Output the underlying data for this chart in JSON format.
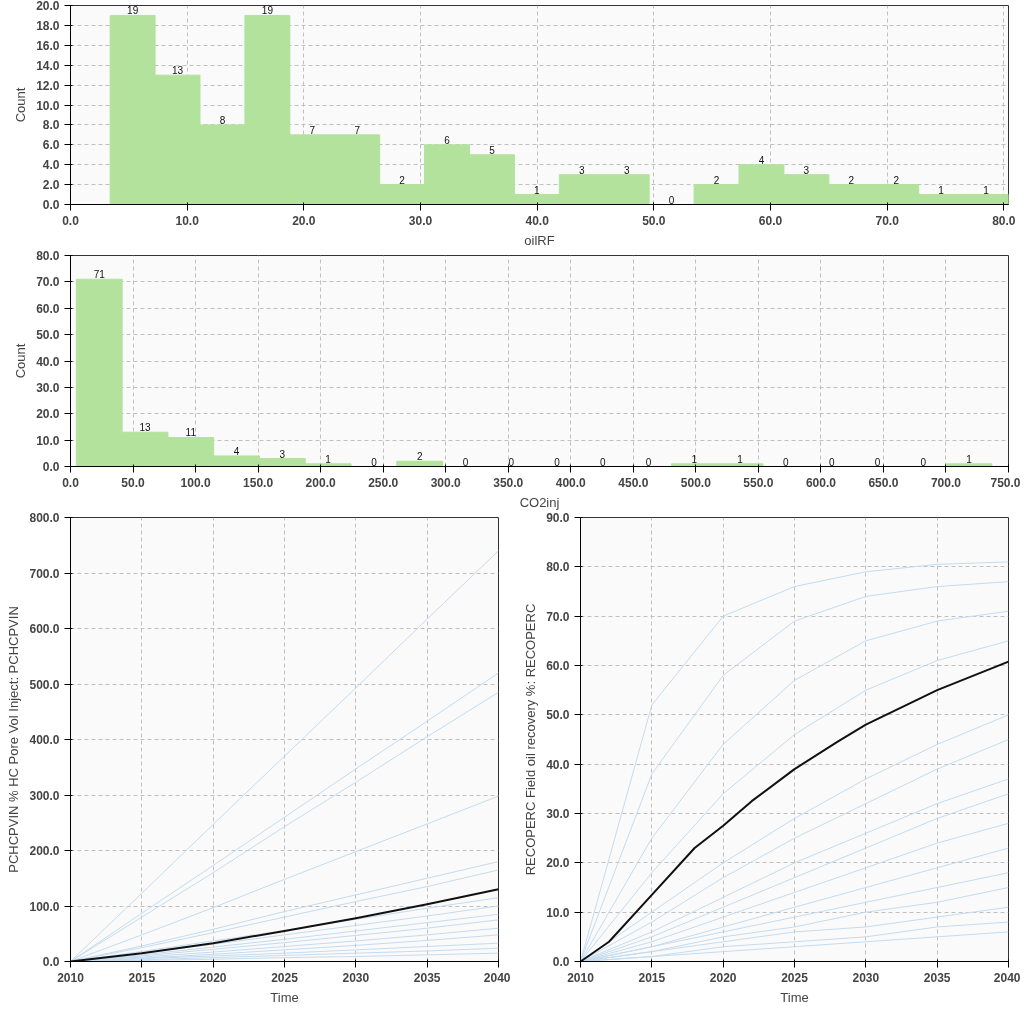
{
  "chart_data": [
    {
      "type": "histogram",
      "xlabel": "oilRF",
      "ylabel": "Count",
      "color": "#b3e29c",
      "data_labels": true,
      "grid": true,
      "bins": [
        3.4,
        7.25,
        11.1,
        14.95,
        18.8,
        22.65,
        26.5,
        30.35,
        34.2,
        38.05,
        41.9,
        45.75,
        49.6,
        53.45,
        57.3,
        61.15,
        65.0,
        68.85,
        72.7,
        76.55,
        80.4
      ],
      "values": [
        19,
        13,
        8,
        19,
        7,
        7,
        2,
        6,
        5,
        1,
        3,
        3,
        0,
        2,
        4,
        3,
        2,
        2,
        1,
        1
      ],
      "xlim": [
        0,
        80.4
      ],
      "ylim": [
        0,
        20
      ],
      "xticks": [
        {
          "value": 0,
          "label": "0.0"
        },
        {
          "value": 10,
          "label": "10.0"
        },
        {
          "value": 20,
          "label": "20.0"
        },
        {
          "value": 30,
          "label": "30.0"
        },
        {
          "value": 40,
          "label": "40.0"
        },
        {
          "value": 50,
          "label": "50.0"
        },
        {
          "value": 60,
          "label": "60.0"
        },
        {
          "value": 70,
          "label": "70.0"
        },
        {
          "value": 80,
          "label": "80.0"
        }
      ],
      "yticks": [
        {
          "value": 0,
          "label": "0.0"
        },
        {
          "value": 2,
          "label": "2.0"
        },
        {
          "value": 4,
          "label": "4.0"
        },
        {
          "value": 6,
          "label": "6.0"
        },
        {
          "value": 8,
          "label": "8.0"
        },
        {
          "value": 10,
          "label": "10.0"
        },
        {
          "value": 12,
          "label": "12.0"
        },
        {
          "value": 14,
          "label": "14.0"
        },
        {
          "value": 16,
          "label": "16.0"
        },
        {
          "value": 18,
          "label": "18.0"
        },
        {
          "value": 20,
          "label": "20.0"
        }
      ]
    },
    {
      "type": "histogram",
      "xlabel": "CO2inj",
      "ylabel": "Count",
      "color": "#b3e29c",
      "data_labels": true,
      "grid": true,
      "bins": [
        4.7,
        41.3,
        77.9,
        114.5,
        151.1,
        187.7,
        224.3,
        260.9,
        297.5,
        334.1,
        370.7,
        407.3,
        443.9,
        480.5,
        517.1,
        553.7,
        590.3,
        626.9,
        663.5,
        700.1,
        736.7
      ],
      "values": [
        71,
        13,
        11,
        4,
        3,
        1,
        0,
        2,
        0,
        0,
        0,
        0,
        0,
        1,
        1,
        0,
        0,
        0,
        0,
        1
      ],
      "xlim": [
        0,
        750
      ],
      "ylim": [
        0,
        80
      ],
      "xticks": [
        {
          "value": 0,
          "label": "0.0"
        },
        {
          "value": 50,
          "label": "50.0"
        },
        {
          "value": 100,
          "label": "100.0"
        },
        {
          "value": 150,
          "label": "150.0"
        },
        {
          "value": 200,
          "label": "200.0"
        },
        {
          "value": 250,
          "label": "250.0"
        },
        {
          "value": 300,
          "label": "300.0"
        },
        {
          "value": 350,
          "label": "350.0"
        },
        {
          "value": 400,
          "label": "400.0"
        },
        {
          "value": 450,
          "label": "450.0"
        },
        {
          "value": 500,
          "label": "500.0"
        },
        {
          "value": 550,
          "label": "550.0"
        },
        {
          "value": 600,
          "label": "600.0"
        },
        {
          "value": 650,
          "label": "650.0"
        },
        {
          "value": 700,
          "label": "700.0"
        },
        {
          "value": 750,
          "label": "750.0"
        }
      ],
      "yticks": [
        {
          "value": 0,
          "label": "0.0"
        },
        {
          "value": 10,
          "label": "10.0"
        },
        {
          "value": 20,
          "label": "20.0"
        },
        {
          "value": 30,
          "label": "30.0"
        },
        {
          "value": 40,
          "label": "40.0"
        },
        {
          "value": 50,
          "label": "50.0"
        },
        {
          "value": 60,
          "label": "60.0"
        },
        {
          "value": 70,
          "label": "70.0"
        },
        {
          "value": 80,
          "label": "80.0"
        }
      ]
    },
    {
      "type": "line",
      "xlabel": "Time",
      "ylabel": "PCHCPVIN % HC Pore Vol Inject: PCHCPVIN",
      "grid": true,
      "marker": "none",
      "x": [
        2010,
        2015,
        2020,
        2025,
        2030,
        2035,
        2040
      ],
      "xlim": [
        2010,
        2040
      ],
      "ylim": [
        0,
        800
      ],
      "xticks": [
        2010,
        2015,
        2020,
        2025,
        2030,
        2035,
        2040
      ],
      "yticks": [
        {
          "value": 0,
          "label": "0.0"
        },
        {
          "value": 100,
          "label": "100.0"
        },
        {
          "value": 200,
          "label": "200.0"
        },
        {
          "value": 300,
          "label": "300.0"
        },
        {
          "value": 400,
          "label": "400.0"
        },
        {
          "value": 500,
          "label": "500.0"
        },
        {
          "value": 600,
          "label": "600.0"
        },
        {
          "value": 700,
          "label": "700.0"
        },
        {
          "value": 800,
          "label": "800.0"
        }
      ],
      "series": [
        {
          "color": "#c4dbef",
          "values": [
            0,
            123,
            247,
            370,
            493,
            617,
            740
          ]
        },
        {
          "color": "#c4dbef",
          "values": [
            0,
            87,
            173,
            260,
            347,
            433,
            520
          ]
        },
        {
          "color": "#c4dbef",
          "values": [
            0,
            80,
            160,
            243,
            323,
            405,
            485
          ]
        },
        {
          "color": "#c4dbef",
          "values": [
            0,
            48,
            97,
            148,
            198,
            248,
            298
          ]
        },
        {
          "color": "#c4dbef",
          "values": [
            0,
            28,
            58,
            90,
            120,
            150,
            180
          ]
        },
        {
          "color": "#c4dbef",
          "values": [
            0,
            25,
            52,
            80,
            108,
            135,
            165
          ]
        },
        {
          "color": "#c4dbef",
          "values": [
            0,
            18,
            37,
            56,
            76,
            96,
            115
          ]
        },
        {
          "color": "#c4dbef",
          "values": [
            0,
            15,
            31,
            48,
            65,
            82,
            100
          ]
        },
        {
          "color": "#c4dbef",
          "values": [
            0,
            12,
            26,
            40,
            55,
            70,
            85
          ]
        },
        {
          "color": "#c4dbef",
          "values": [
            0,
            10,
            22,
            34,
            47,
            60,
            75
          ]
        },
        {
          "color": "#c4dbef",
          "values": [
            0,
            8,
            17,
            27,
            37,
            48,
            60
          ]
        },
        {
          "color": "#c4dbef",
          "values": [
            0,
            6,
            13,
            21,
            29,
            38,
            48
          ]
        },
        {
          "color": "#c4dbef",
          "values": [
            0,
            5,
            10,
            15,
            21,
            27,
            33
          ]
        },
        {
          "color": "#c4dbef",
          "values": [
            0,
            3,
            7,
            11,
            15,
            19,
            24
          ]
        },
        {
          "color": "#c4dbef",
          "values": [
            0,
            2,
            4,
            7,
            9,
            12,
            15
          ]
        },
        {
          "color": "#111111",
          "values": [
            0,
            15,
            33,
            55,
            78,
            103,
            130
          ]
        }
      ]
    },
    {
      "type": "line",
      "xlabel": "Time",
      "ylabel": "RECOPERC Field oil recovery %: RECOPERC",
      "grid": true,
      "marker": "none",
      "x": [
        2010,
        2015,
        2020,
        2025,
        2030,
        2035,
        2040
      ],
      "xlim": [
        2010,
        2040
      ],
      "ylim": [
        0,
        90
      ],
      "xticks": [
        2010,
        2015,
        2020,
        2025,
        2030,
        2035,
        2040
      ],
      "yticks": [
        {
          "value": 0,
          "label": "0.0"
        },
        {
          "value": 10,
          "label": "10.0"
        },
        {
          "value": 20,
          "label": "20.0"
        },
        {
          "value": 30,
          "label": "30.0"
        },
        {
          "value": 40,
          "label": "40.0"
        },
        {
          "value": 50,
          "label": "50.0"
        },
        {
          "value": 60,
          "label": "60.0"
        },
        {
          "value": 70,
          "label": "70.0"
        },
        {
          "value": 80,
          "label": "80.0"
        },
        {
          "value": 90,
          "label": "90.0"
        }
      ],
      "series": [
        {
          "color": "#c4dbef",
          "values": [
            0,
            52,
            70,
            76,
            79,
            80.5,
            81
          ]
        },
        {
          "color": "#c4dbef",
          "values": [
            0,
            38,
            58,
            69,
            74,
            76,
            77
          ]
        },
        {
          "color": "#c4dbef",
          "values": [
            0,
            25,
            44,
            57,
            65,
            69,
            71
          ]
        },
        {
          "color": "#c4dbef",
          "values": [
            0,
            18,
            34,
            46,
            55,
            61,
            65
          ]
        },
        {
          "color": "#c4dbef",
          "values": [
            0,
            10,
            20,
            29,
            37,
            44,
            50
          ]
        },
        {
          "color": "#c4dbef",
          "values": [
            0,
            8,
            17,
            25,
            32,
            39,
            45
          ]
        },
        {
          "color": "#c4dbef",
          "values": [
            0,
            6,
            13,
            20,
            26,
            32,
            37
          ]
        },
        {
          "color": "#c4dbef",
          "values": [
            0,
            5,
            11,
            17,
            23,
            29,
            34
          ]
        },
        {
          "color": "#c4dbef",
          "values": [
            0,
            4,
            9,
            14,
            19,
            24,
            28
          ]
        },
        {
          "color": "#c4dbef",
          "values": [
            0,
            3,
            7,
            11,
            15,
            19,
            23
          ]
        },
        {
          "color": "#c4dbef",
          "values": [
            0,
            3,
            6,
            9,
            12,
            15,
            18
          ]
        },
        {
          "color": "#c4dbef",
          "values": [
            0,
            2,
            5,
            7,
            10,
            12,
            15
          ]
        },
        {
          "color": "#c4dbef",
          "values": [
            0,
            2,
            4,
            6,
            7,
            9,
            11
          ]
        },
        {
          "color": "#c4dbef",
          "values": [
            0,
            1,
            3,
            4,
            5,
            7,
            8
          ]
        },
        {
          "color": "#c4dbef",
          "values": [
            0,
            1,
            2,
            3,
            4,
            5,
            6
          ]
        },
        {
          "color": "#111111",
          "x": [
            2010,
            2012,
            2015,
            2018,
            2020,
            2022,
            2025,
            2028,
            2030,
            2035,
            2040
          ],
          "values": [
            0,
            4,
            13.5,
            23,
            27.5,
            32.5,
            39,
            44.5,
            48,
            55,
            60.8
          ]
        }
      ]
    }
  ]
}
